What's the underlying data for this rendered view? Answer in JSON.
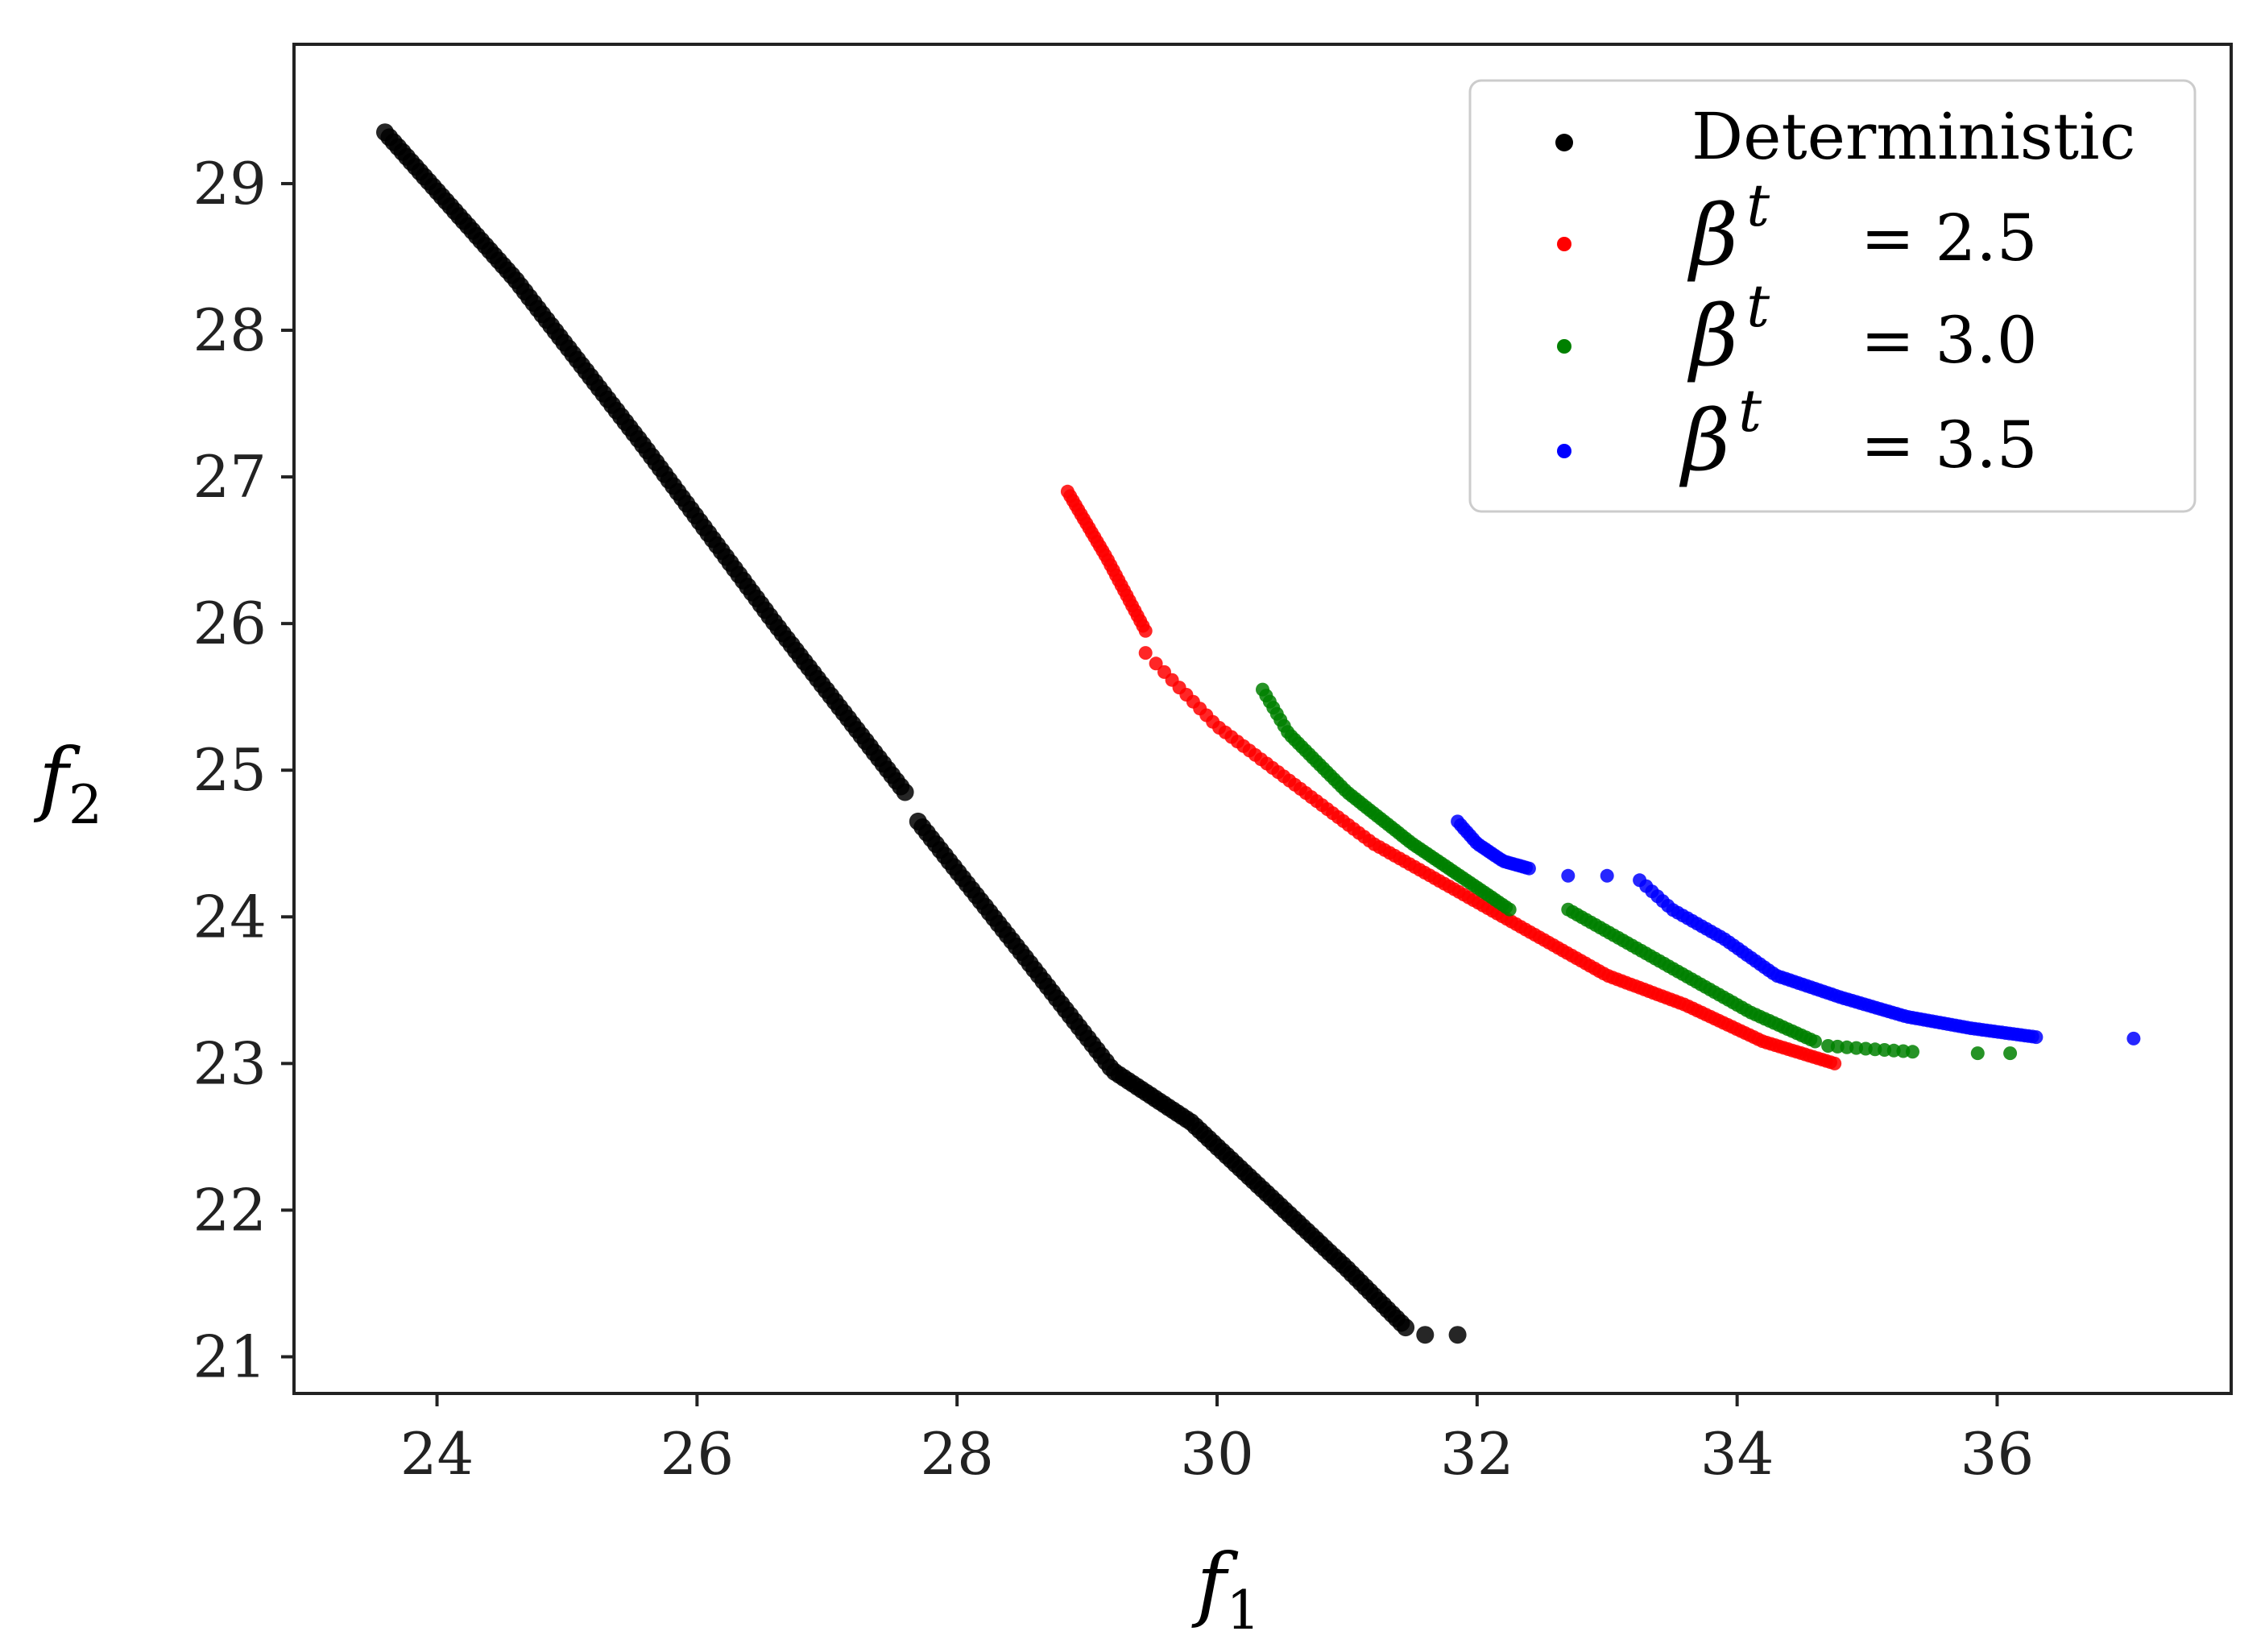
{
  "chart_data": {
    "type": "scatter",
    "title": "",
    "xlabel": {
      "base": "f",
      "sub": "1"
    },
    "ylabel": {
      "base": "f",
      "sub": "2"
    },
    "xlim": [
      22.9,
      37.8
    ],
    "ylim": [
      20.75,
      29.95
    ],
    "xticks": [
      24,
      26,
      28,
      30,
      32,
      34,
      36
    ],
    "yticks": [
      21,
      22,
      23,
      24,
      25,
      26,
      27,
      28,
      29
    ],
    "grid": false,
    "legend": {
      "placement": "top-right"
    },
    "series": [
      {
        "name": "Deterministic",
        "color": "#000000",
        "marker_size": "large",
        "segments": [
          {
            "x0": 23.6,
            "x1": 27.6,
            "n": 120,
            "power": 1.0,
            "y_anchors": [
              [
                23.6,
                29.35
              ],
              [
                24.6,
                28.35
              ],
              [
                25.6,
                27.2
              ],
              [
                26.6,
                26.0
              ],
              [
                27.6,
                24.85
              ]
            ]
          },
          {
            "x0": 27.7,
            "x1": 31.45,
            "n": 110,
            "power": 1.0,
            "y_anchors": [
              [
                27.7,
                24.65
              ],
              [
                28.5,
                23.75
              ],
              [
                29.2,
                22.95
              ],
              [
                29.8,
                22.6
              ],
              [
                30.4,
                22.1
              ],
              [
                31.0,
                21.6
              ],
              [
                31.45,
                21.2
              ]
            ]
          }
        ],
        "extra_points": [
          [
            31.6,
            21.15
          ],
          [
            31.85,
            21.15
          ]
        ]
      },
      {
        "name": "= 2.5",
        "prefix": "β",
        "superscript": "t",
        "color": "#ff0000",
        "marker_size": "medium",
        "segments": [
          {
            "x0": 28.85,
            "x1": 29.45,
            "n": 30,
            "power": 1.0,
            "y_anchors": [
              [
                28.85,
                26.9
              ],
              [
                29.15,
                26.45
              ],
              [
                29.45,
                25.95
              ]
            ]
          },
          {
            "x0": 29.45,
            "x1": 34.75,
            "n": 140,
            "power": 0.85,
            "y_anchors": [
              [
                29.45,
                25.8
              ],
              [
                30.0,
                25.3
              ],
              [
                30.6,
                24.9
              ],
              [
                31.2,
                24.5
              ],
              [
                31.8,
                24.2
              ],
              [
                32.4,
                23.9
              ],
              [
                33.0,
                23.6
              ],
              [
                33.6,
                23.4
              ],
              [
                34.2,
                23.15
              ],
              [
                34.75,
                23.0
              ]
            ]
          }
        ]
      },
      {
        "name": "= 3.0",
        "prefix": "β",
        "superscript": "t",
        "color": "#008000",
        "marker_size": "medium",
        "segments": [
          {
            "x0": 30.35,
            "x1": 32.25,
            "n": 70,
            "power": 1.0,
            "y_anchors": [
              [
                30.35,
                25.55
              ],
              [
                30.55,
                25.25
              ],
              [
                31.0,
                24.85
              ],
              [
                31.5,
                24.5
              ],
              [
                32.0,
                24.2
              ],
              [
                32.25,
                24.05
              ]
            ]
          },
          {
            "x0": 32.7,
            "x1": 34.6,
            "n": 55,
            "power": 1.0,
            "y_anchors": [
              [
                32.7,
                24.05
              ],
              [
                33.1,
                23.85
              ],
              [
                33.6,
                23.6
              ],
              [
                34.1,
                23.35
              ],
              [
                34.6,
                23.15
              ]
            ]
          },
          {
            "x0": 34.7,
            "x1": 35.35,
            "n": 10,
            "power": 1.0,
            "y_anchors": [
              [
                34.7,
                23.12
              ],
              [
                35.0,
                23.1
              ],
              [
                35.35,
                23.08
              ]
            ]
          }
        ],
        "extra_points": [
          [
            35.85,
            23.07
          ],
          [
            36.1,
            23.07
          ]
        ]
      },
      {
        "name": "= 3.5",
        "prefix": "β",
        "superscript": "t",
        "color": "#0000ff",
        "marker_size": "medium",
        "segments": [
          {
            "x0": 31.85,
            "x1": 32.4,
            "n": 24,
            "power": 1.0,
            "y_anchors": [
              [
                31.85,
                24.65
              ],
              [
                32.0,
                24.5
              ],
              [
                32.2,
                24.38
              ],
              [
                32.4,
                24.33
              ]
            ]
          },
          {
            "x0": 33.25,
            "x1": 36.3,
            "n": 95,
            "power": 0.9,
            "y_anchors": [
              [
                33.25,
                24.25
              ],
              [
                33.5,
                24.05
              ],
              [
                33.9,
                23.85
              ],
              [
                34.3,
                23.6
              ],
              [
                34.8,
                23.45
              ],
              [
                35.3,
                23.32
              ],
              [
                35.8,
                23.24
              ],
              [
                36.3,
                23.18
              ]
            ]
          }
        ],
        "extra_points": [
          [
            32.7,
            24.28
          ],
          [
            33.0,
            24.28
          ],
          [
            37.05,
            23.17
          ]
        ]
      }
    ]
  }
}
